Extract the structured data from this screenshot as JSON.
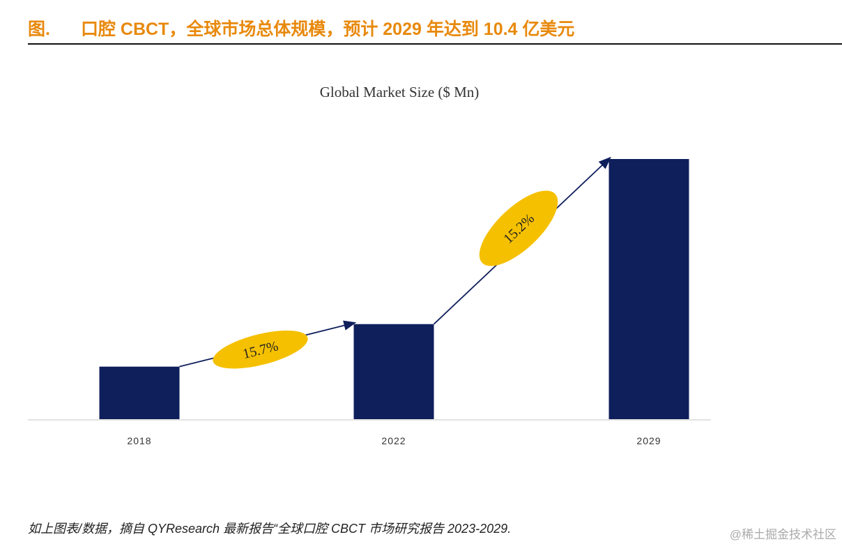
{
  "header": {
    "label": "图.",
    "title": "口腔 CBCT，全球市场总体规模，预计 2029 年达到 10.4 亿美元"
  },
  "chart_data": {
    "type": "bar",
    "title": "Global Market Size ($ Mn)",
    "xlabel": "",
    "ylabel": "",
    "categories": [
      "2018",
      "2022",
      "2029"
    ],
    "values": [
      210,
      380,
      1040
    ],
    "ylim": [
      0,
      1040
    ],
    "bar_color": "#0f1f5c",
    "grid": false,
    "legend": "none",
    "annotations": [
      {
        "from": "2018",
        "to": "2022",
        "label": "15.7%"
      },
      {
        "from": "2022",
        "to": "2029",
        "label": "15.2%"
      }
    ],
    "annotation_color": "#f5c000"
  },
  "footer": {
    "source": "如上图表/数据，摘自 QYResearch 最新报告“全球口腔 CBCT 市场研究报告 2023-2029.",
    "watermark": "@稀土掘金技术社区"
  }
}
